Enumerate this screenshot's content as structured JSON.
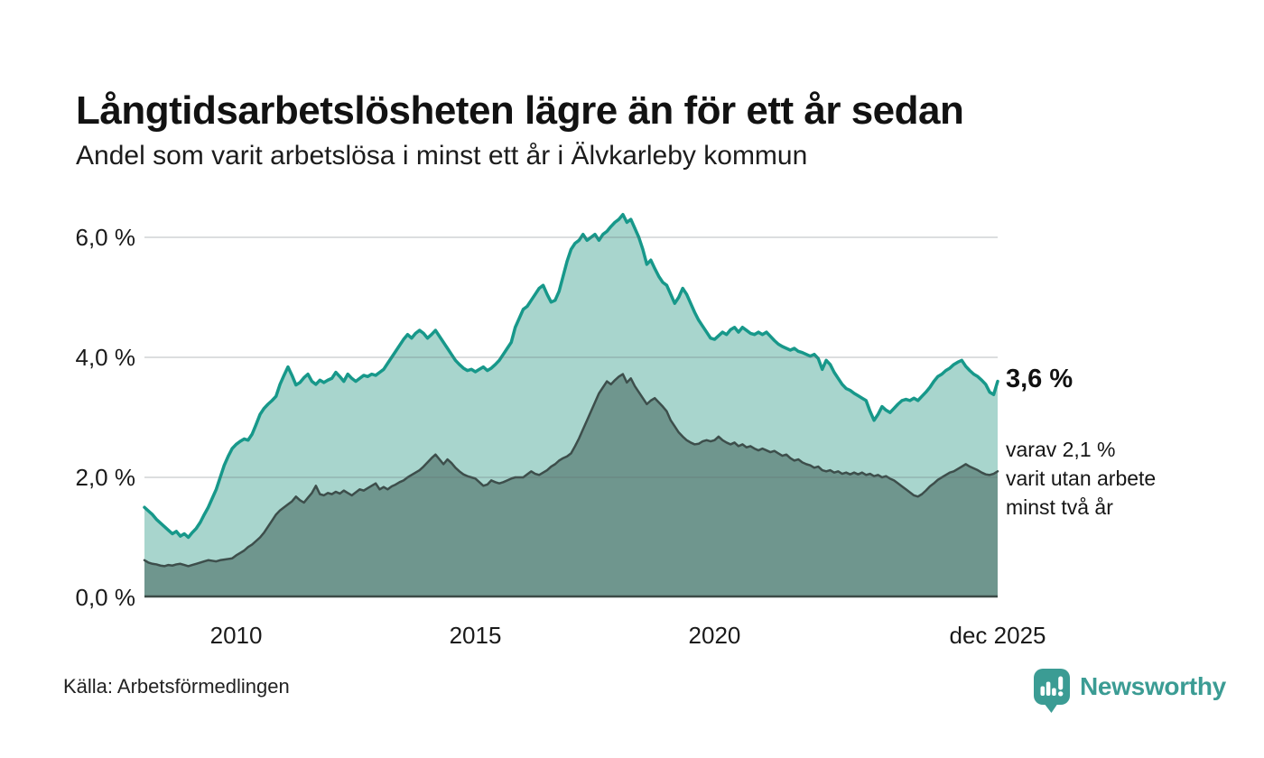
{
  "header": {
    "title": "Långtidsarbetslösheten lägre än för ett år sedan",
    "subtitle": "Andel som varit arbetslösa i minst ett år i Älvkarleby kommun"
  },
  "chart_data": {
    "type": "area",
    "x_start": 2008.0833,
    "x_step_years": 0.083333,
    "x_ticks": [
      {
        "x": 2010,
        "label": "2010"
      },
      {
        "x": 2015,
        "label": "2015"
      },
      {
        "x": 2020,
        "label": "2020"
      },
      {
        "x": 2025.9167,
        "label": "dec 2025"
      }
    ],
    "y_ticks": [
      {
        "v": 0,
        "label": "0,0 %"
      },
      {
        "v": 2,
        "label": "2,0 %"
      },
      {
        "v": 4,
        "label": "4,0 %"
      },
      {
        "v": 6,
        "label": "6,0 %"
      }
    ],
    "ylim": [
      0,
      6.5
    ],
    "grid": true,
    "legend": "none",
    "series": [
      {
        "name": "arbetslösa minst ett år",
        "color": "#17988A",
        "fill": "#A8D5CD",
        "line_width": 3.5,
        "last_value": 3.6,
        "values": [
          1.5,
          1.44,
          1.38,
          1.3,
          1.24,
          1.18,
          1.12,
          1.06,
          1.1,
          1.02,
          1.06,
          1.0,
          1.08,
          1.15,
          1.25,
          1.38,
          1.5,
          1.65,
          1.8,
          2.0,
          2.2,
          2.35,
          2.48,
          2.55,
          2.6,
          2.64,
          2.62,
          2.72,
          2.88,
          3.05,
          3.15,
          3.22,
          3.28,
          3.35,
          3.55,
          3.7,
          3.84,
          3.7,
          3.54,
          3.58,
          3.66,
          3.72,
          3.6,
          3.55,
          3.62,
          3.58,
          3.62,
          3.65,
          3.75,
          3.68,
          3.6,
          3.72,
          3.65,
          3.6,
          3.65,
          3.7,
          3.68,
          3.72,
          3.7,
          3.75,
          3.8,
          3.9,
          4.0,
          4.1,
          4.2,
          4.3,
          4.38,
          4.32,
          4.4,
          4.45,
          4.4,
          4.32,
          4.38,
          4.45,
          4.35,
          4.25,
          4.15,
          4.05,
          3.95,
          3.88,
          3.82,
          3.78,
          3.8,
          3.76,
          3.8,
          3.84,
          3.78,
          3.82,
          3.88,
          3.95,
          4.05,
          4.15,
          4.25,
          4.5,
          4.65,
          4.8,
          4.85,
          4.95,
          5.05,
          5.15,
          5.2,
          5.05,
          4.92,
          4.95,
          5.1,
          5.35,
          5.6,
          5.8,
          5.9,
          5.95,
          6.05,
          5.95,
          6.0,
          6.05,
          5.95,
          6.05,
          6.1,
          6.18,
          6.25,
          6.3,
          6.38,
          6.25,
          6.3,
          6.15,
          6.0,
          5.8,
          5.55,
          5.62,
          5.48,
          5.35,
          5.25,
          5.2,
          5.05,
          4.9,
          5.0,
          5.15,
          5.05,
          4.9,
          4.75,
          4.62,
          4.52,
          4.42,
          4.32,
          4.3,
          4.36,
          4.42,
          4.38,
          4.46,
          4.5,
          4.42,
          4.5,
          4.45,
          4.4,
          4.38,
          4.42,
          4.38,
          4.42,
          4.35,
          4.28,
          4.22,
          4.18,
          4.15,
          4.12,
          4.15,
          4.1,
          4.08,
          4.05,
          4.02,
          4.05,
          3.98,
          3.8,
          3.95,
          3.88,
          3.75,
          3.65,
          3.55,
          3.48,
          3.45,
          3.4,
          3.36,
          3.32,
          3.28,
          3.1,
          2.95,
          3.05,
          3.18,
          3.12,
          3.08,
          3.15,
          3.22,
          3.28,
          3.3,
          3.28,
          3.32,
          3.28,
          3.35,
          3.42,
          3.5,
          3.6,
          3.68,
          3.72,
          3.78,
          3.82,
          3.88,
          3.92,
          3.95,
          3.85,
          3.78,
          3.72,
          3.68,
          3.62,
          3.55,
          3.42,
          3.38,
          3.6
        ]
      },
      {
        "name": "varav arbetslösa minst två år",
        "color": "#3D4E4B",
        "fill": "#6F968E",
        "line_width": 2.5,
        "last_value": 2.1,
        "values": [
          0.62,
          0.58,
          0.56,
          0.55,
          0.53,
          0.52,
          0.54,
          0.53,
          0.55,
          0.56,
          0.54,
          0.52,
          0.54,
          0.56,
          0.58,
          0.6,
          0.62,
          0.61,
          0.6,
          0.62,
          0.63,
          0.64,
          0.65,
          0.7,
          0.74,
          0.78,
          0.84,
          0.88,
          0.94,
          1.0,
          1.08,
          1.18,
          1.28,
          1.38,
          1.45,
          1.5,
          1.55,
          1.6,
          1.68,
          1.62,
          1.58,
          1.66,
          1.74,
          1.86,
          1.72,
          1.7,
          1.74,
          1.72,
          1.76,
          1.73,
          1.78,
          1.74,
          1.7,
          1.75,
          1.8,
          1.78,
          1.82,
          1.86,
          1.9,
          1.8,
          1.84,
          1.8,
          1.85,
          1.88,
          1.92,
          1.95,
          2.0,
          2.04,
          2.08,
          2.12,
          2.18,
          2.25,
          2.32,
          2.38,
          2.3,
          2.22,
          2.3,
          2.24,
          2.16,
          2.1,
          2.05,
          2.02,
          2.0,
          1.98,
          1.92,
          1.86,
          1.88,
          1.95,
          1.92,
          1.9,
          1.92,
          1.95,
          1.98,
          2.0,
          2.0,
          2.0,
          2.05,
          2.1,
          2.06,
          2.04,
          2.08,
          2.12,
          2.18,
          2.22,
          2.28,
          2.32,
          2.35,
          2.4,
          2.52,
          2.65,
          2.8,
          2.95,
          3.1,
          3.25,
          3.4,
          3.5,
          3.6,
          3.55,
          3.62,
          3.68,
          3.72,
          3.58,
          3.65,
          3.52,
          3.42,
          3.32,
          3.22,
          3.28,
          3.32,
          3.25,
          3.18,
          3.1,
          2.95,
          2.85,
          2.75,
          2.68,
          2.62,
          2.58,
          2.55,
          2.56,
          2.6,
          2.62,
          2.6,
          2.62,
          2.68,
          2.62,
          2.58,
          2.55,
          2.58,
          2.52,
          2.55,
          2.5,
          2.52,
          2.48,
          2.45,
          2.48,
          2.45,
          2.42,
          2.44,
          2.4,
          2.36,
          2.38,
          2.32,
          2.28,
          2.3,
          2.25,
          2.22,
          2.2,
          2.16,
          2.18,
          2.12,
          2.1,
          2.12,
          2.08,
          2.1,
          2.06,
          2.08,
          2.05,
          2.08,
          2.05,
          2.08,
          2.04,
          2.06,
          2.02,
          2.04,
          2.0,
          2.02,
          1.98,
          1.95,
          1.9,
          1.85,
          1.8,
          1.75,
          1.7,
          1.68,
          1.72,
          1.78,
          1.85,
          1.9,
          1.96,
          2.0,
          2.04,
          2.08,
          2.1,
          2.14,
          2.18,
          2.22,
          2.18,
          2.15,
          2.12,
          2.08,
          2.05,
          2.04,
          2.06,
          2.1
        ]
      }
    ],
    "annotations": {
      "value_label": "3,6 %",
      "sub_line1": "varav 2,1 %",
      "sub_line2": "varit utan arbete",
      "sub_line3": "minst två år"
    }
  },
  "footer": {
    "source": "Källa: Arbetsförmedlingen",
    "brand": "Newsworthy"
  },
  "colors": {
    "outer_line": "#17988A",
    "outer_fill": "#A8D5CD",
    "inner_line": "#3D4E4B",
    "inner_fill": "#6F968E",
    "gridline": "#E1E1E4",
    "baseline": "#3C4B47",
    "brand_teal": "#3B9C94",
    "text": "#141414"
  }
}
